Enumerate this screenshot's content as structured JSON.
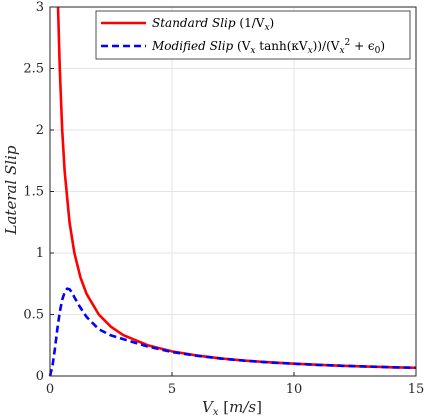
{
  "chart_data": {
    "type": "line",
    "xlabel": "V_x [m/s]",
    "ylabel": "Lateral Slip",
    "xlim": [
      0,
      15
    ],
    "ylim": [
      0,
      3
    ],
    "xticks": [
      "0",
      "5",
      "10",
      "15"
    ],
    "yticks": [
      "0",
      "0.5",
      "1",
      "1.5",
      "2",
      "2.5",
      "3"
    ],
    "grid": true,
    "legend_position": "top-right",
    "series": [
      {
        "name": "Standard Slip (1/V_x)",
        "color": "#ff0000",
        "style": "solid",
        "x": [
          0.33,
          0.4,
          0.5,
          0.6,
          0.8,
          1.0,
          1.25,
          1.5,
          2.0,
          2.5,
          3.0,
          4.0,
          5.0,
          6.0,
          7.0,
          8.0,
          9.0,
          10.0,
          11.0,
          12.0,
          13.0,
          14.0,
          15.0
        ],
        "y": [
          3.0,
          2.5,
          2.0,
          1.667,
          1.25,
          1.0,
          0.8,
          0.667,
          0.5,
          0.4,
          0.333,
          0.25,
          0.2,
          0.167,
          0.143,
          0.125,
          0.111,
          0.1,
          0.091,
          0.083,
          0.077,
          0.071,
          0.067
        ]
      },
      {
        "name": "Modified Slip (V_x tanh(κV_x))/(V_x² + ε₀)",
        "color": "#0000ff",
        "style": "dashed",
        "x": [
          0.0,
          0.1,
          0.2,
          0.3,
          0.4,
          0.5,
          0.6,
          0.7,
          0.8,
          0.9,
          1.0,
          1.2,
          1.5,
          2.0,
          2.5,
          3.0,
          4.0,
          5.0,
          6.0,
          7.0,
          8.0,
          9.0,
          10.0,
          11.0,
          12.0,
          13.0,
          14.0,
          15.0
        ],
        "y": [
          0.0,
          0.08,
          0.22,
          0.38,
          0.52,
          0.62,
          0.68,
          0.71,
          0.705,
          0.68,
          0.64,
          0.57,
          0.48,
          0.38,
          0.33,
          0.3,
          0.24,
          0.195,
          0.165,
          0.142,
          0.124,
          0.11,
          0.1,
          0.09,
          0.083,
          0.077,
          0.071,
          0.067
        ]
      }
    ],
    "legend": [
      {
        "name_main": "Standard Slip",
        "name_formula": "(1/V",
        "name_sub": "x",
        "name_end": ")"
      },
      {
        "name_main": "Modified Slip",
        "name_formula": "(V",
        "name_sub": "x",
        "name_tanh": " tanh(κV",
        "name_sub2": "x",
        "name_mid": "))/(V",
        "name_sub3": "x",
        "name_sup": "2",
        "name_eps": " + ϵ",
        "name_eps_sub": "0",
        "name_end": ")"
      }
    ]
  }
}
